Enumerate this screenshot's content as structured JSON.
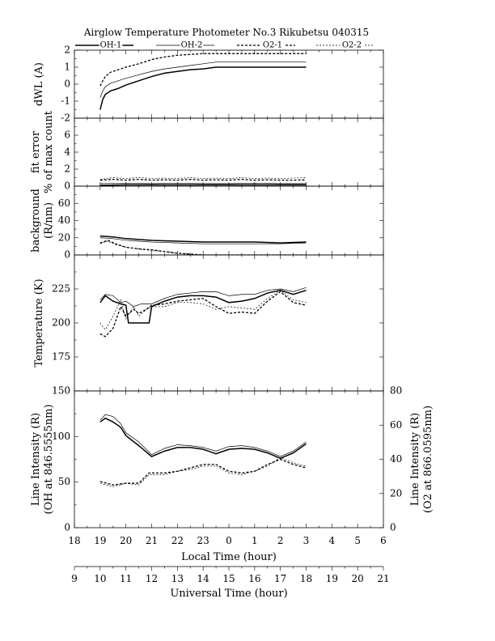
{
  "title": "Airglow Temperature Photometer No.3  Rikubetsu  040315",
  "legend": [
    {
      "label": "OH-1",
      "style": "solid-thick"
    },
    {
      "label": "OH-2",
      "style": "solid-thin"
    },
    {
      "label": "O2-1",
      "style": "dashed-thick"
    },
    {
      "label": "O2-2",
      "style": "dashed-thin"
    }
  ],
  "xaxis": {
    "local_label": "Local Time (hour)",
    "local_ticks": [
      "18",
      "19",
      "20",
      "21",
      "22",
      "23",
      "0",
      "1",
      "2",
      "3",
      "4",
      "5",
      "6"
    ],
    "ut_label": "Universal Time (hour)",
    "ut_ticks": [
      "9",
      "10",
      "11",
      "12",
      "13",
      "14",
      "15",
      "16",
      "17",
      "18",
      "19",
      "20",
      "21"
    ]
  },
  "chart_data": [
    {
      "type": "line",
      "panel": "dwl",
      "ylabel": "dWL (A)",
      "ylim": [
        -2,
        2
      ],
      "yticks": [
        "-2",
        "-1",
        "0",
        "1",
        "2"
      ],
      "series": [
        {
          "name": "OH-1",
          "x": [
            10,
            10.1,
            10.2,
            10.4,
            10.7,
            11,
            11.5,
            12,
            12.5,
            13,
            13.5,
            14,
            14.5,
            15,
            16,
            17,
            18
          ],
          "y": [
            -1.5,
            -0.9,
            -0.6,
            -0.4,
            -0.25,
            -0.05,
            0.2,
            0.45,
            0.65,
            0.75,
            0.85,
            0.9,
            1.0,
            1.0,
            1.0,
            1.0,
            1.0
          ]
        },
        {
          "name": "OH-2",
          "x": [
            10,
            10.1,
            10.2,
            10.4,
            10.7,
            11,
            11.5,
            12,
            12.5,
            13,
            13.5,
            14,
            14.5,
            15,
            16,
            17,
            18
          ],
          "y": [
            -0.8,
            -0.4,
            -0.15,
            0.05,
            0.2,
            0.35,
            0.55,
            0.75,
            0.9,
            1.0,
            1.1,
            1.2,
            1.3,
            1.3,
            1.3,
            1.3,
            1.3
          ]
        },
        {
          "name": "O2-1",
          "x": [
            10,
            10.1,
            10.2,
            10.4,
            10.7,
            11,
            11.5,
            12,
            12.5,
            13,
            13.5,
            14,
            14.5,
            15,
            16,
            17,
            18
          ],
          "y": [
            -0.1,
            0.2,
            0.45,
            0.7,
            0.85,
            1.0,
            1.2,
            1.45,
            1.6,
            1.7,
            1.75,
            1.8,
            1.8,
            1.8,
            1.8,
            1.8,
            1.8
          ]
        },
        {
          "name": "O2-2",
          "x": [
            10,
            10.5,
            11,
            11.5,
            12,
            12.5,
            13,
            14,
            15,
            16,
            17,
            18
          ],
          "y": [
            2,
            2,
            2,
            2,
            2,
            2,
            2,
            2,
            2,
            2,
            2,
            2
          ]
        }
      ]
    },
    {
      "type": "line",
      "panel": "fit_error",
      "ylabel": "fit error",
      "ylabel2": "% of max count",
      "ylim": [
        0,
        8
      ],
      "yticks": [
        "0",
        "2",
        "4",
        "6"
      ],
      "series": [
        {
          "name": "OH-1",
          "x": [
            10,
            11,
            12,
            13,
            14,
            15,
            16,
            17,
            18
          ],
          "y": [
            0.1,
            0.15,
            0.15,
            0.15,
            0.15,
            0.15,
            0.15,
            0.15,
            0.15
          ]
        },
        {
          "name": "OH-2",
          "x": [
            10,
            11,
            12,
            13,
            14,
            15,
            16,
            17,
            18
          ],
          "y": [
            0.3,
            0.35,
            0.3,
            0.35,
            0.3,
            0.3,
            0.35,
            0.3,
            0.3
          ]
        },
        {
          "name": "O2-1",
          "x": [
            10,
            10.5,
            11,
            11.5,
            12,
            12.5,
            13,
            13.5,
            14,
            14.5,
            15,
            15.5,
            16,
            16.5,
            17,
            17.5,
            18
          ],
          "y": [
            0.7,
            0.8,
            0.7,
            0.8,
            0.7,
            0.75,
            0.7,
            0.8,
            0.7,
            0.75,
            0.7,
            0.8,
            0.7,
            0.75,
            0.7,
            0.7,
            0.75
          ]
        },
        {
          "name": "O2-2",
          "x": [
            10,
            10.5,
            11,
            11.5,
            12,
            12.5,
            13,
            13.5,
            14,
            14.5,
            15,
            15.5,
            16,
            16.5,
            17,
            17.5,
            18
          ],
          "y": [
            0.8,
            1.0,
            0.9,
            1.0,
            0.9,
            0.95,
            0.9,
            1.0,
            0.9,
            0.95,
            0.9,
            1.0,
            0.9,
            0.95,
            0.9,
            0.95,
            1.0
          ]
        }
      ]
    },
    {
      "type": "line",
      "panel": "background",
      "ylabel": "background",
      "ylabel2": "(R/nm)",
      "ylim": [
        0,
        80
      ],
      "yticks": [
        "0",
        "20",
        "40",
        "60"
      ],
      "series": [
        {
          "name": "OH-1",
          "x": [
            10,
            10.5,
            11,
            11.5,
            12,
            13,
            14,
            15,
            16,
            17,
            18
          ],
          "y": [
            22,
            21,
            19,
            18,
            17,
            16,
            15,
            15,
            15,
            14,
            15
          ]
        },
        {
          "name": "OH-2",
          "x": [
            10,
            10.5,
            11,
            11.5,
            12,
            13,
            14,
            15,
            16,
            17,
            18
          ],
          "y": [
            20,
            19,
            17,
            16,
            15,
            14,
            13,
            13,
            13,
            13,
            14
          ]
        },
        {
          "name": "O2-1",
          "x": [
            10,
            10.3,
            10.6,
            11,
            11.5,
            12,
            12.5,
            13,
            13.5,
            14,
            15,
            16,
            17,
            18
          ],
          "y": [
            14,
            17,
            13,
            9,
            7,
            6,
            4,
            2,
            1,
            0,
            0,
            0,
            0,
            0
          ]
        },
        {
          "name": "O2-2",
          "x": [
            10,
            10.3,
            10.6,
            11,
            11.5,
            12,
            12.5,
            13,
            13.5,
            14,
            15,
            16,
            17,
            18
          ],
          "y": [
            13,
            16,
            12,
            9,
            7,
            5,
            4,
            2,
            1,
            0,
            0,
            0,
            0,
            0
          ]
        }
      ]
    },
    {
      "type": "line",
      "panel": "temperature",
      "ylabel": "Temperature (K)",
      "ylim": [
        150,
        250
      ],
      "yticks": [
        "175",
        "200",
        "225"
      ],
      "series": [
        {
          "name": "OH-1",
          "x": [
            10,
            10.2,
            10.5,
            10.8,
            11,
            11.1,
            11.5,
            11.6,
            11.9,
            12,
            12.5,
            13,
            13.5,
            14,
            14.5,
            15,
            15.5,
            16,
            16.5,
            17,
            17.5,
            18
          ],
          "y": [
            215,
            220,
            216,
            214,
            213,
            200,
            200,
            200,
            200,
            212,
            216,
            219,
            220,
            220,
            219,
            215,
            216,
            218,
            222,
            224,
            221,
            224
          ]
        },
        {
          "name": "OH-2",
          "x": [
            10,
            10.2,
            10.5,
            10.8,
            11,
            11.3,
            11.6,
            12,
            12.5,
            13,
            13.5,
            14,
            14.5,
            15,
            15.5,
            16,
            16.5,
            17,
            17.5,
            18
          ],
          "y": [
            217,
            221,
            220,
            215,
            216,
            212,
            214,
            214,
            218,
            221,
            222,
            223,
            223,
            220,
            221,
            221,
            224,
            225,
            223,
            226
          ]
        },
        {
          "name": "O2-1",
          "x": [
            10,
            10.2,
            10.5,
            10.8,
            11,
            11.3,
            11.5,
            11.8,
            12,
            12.5,
            13,
            13.5,
            14,
            14.5,
            15,
            15.5,
            16,
            16.5,
            17,
            17.5,
            18
          ],
          "y": [
            192,
            190,
            196,
            212,
            205,
            210,
            207,
            210,
            213,
            214,
            216,
            217,
            218,
            212,
            207,
            208,
            207,
            216,
            223,
            215,
            213
          ]
        },
        {
          "name": "O2-2",
          "x": [
            10,
            10.2,
            10.5,
            10.8,
            11,
            11.3,
            11.5,
            11.8,
            12,
            12.5,
            13,
            13.5,
            14,
            14.5,
            15,
            15.5,
            16,
            16.5,
            17,
            17.5,
            18
          ],
          "y": [
            200,
            195,
            205,
            217,
            203,
            212,
            205,
            210,
            212,
            212,
            215,
            215,
            214,
            210,
            212,
            211,
            210,
            218,
            224,
            217,
            215
          ]
        }
      ]
    },
    {
      "type": "line",
      "panel": "line_intensity",
      "ylabel": "Line Intensity (R)",
      "ylabel2": "(OH at 846.5555nm)",
      "ylim": [
        0,
        150
      ],
      "yticks": [
        "0",
        "50",
        "100",
        "150"
      ],
      "ylabel_right": "Line Intensity (R)",
      "ylabel_right2": "(O2 at 866.0595nm)",
      "ylim_right": [
        0,
        80
      ],
      "yticks_right": [
        "0",
        "20",
        "40",
        "60",
        "80"
      ],
      "series": [
        {
          "name": "OH-1",
          "axis": "left",
          "x": [
            10,
            10.2,
            10.5,
            10.8,
            11,
            11.5,
            12,
            12.5,
            13,
            13.5,
            14,
            14.5,
            15,
            15.5,
            16,
            16.5,
            17,
            17.5,
            18
          ],
          "y": [
            116,
            120,
            116,
            110,
            101,
            90,
            78,
            84,
            88,
            88,
            86,
            81,
            86,
            87,
            86,
            82,
            76,
            82,
            92
          ]
        },
        {
          "name": "OH-2",
          "axis": "left",
          "x": [
            10,
            10.2,
            10.5,
            10.8,
            11,
            11.5,
            12,
            12.5,
            13,
            13.5,
            14,
            14.5,
            15,
            15.5,
            16,
            16.5,
            17,
            17.5,
            18
          ],
          "y": [
            118,
            124,
            122,
            114,
            104,
            94,
            80,
            87,
            91,
            90,
            88,
            84,
            89,
            90,
            88,
            84,
            78,
            84,
            94
          ]
        },
        {
          "name": "O2-1",
          "axis": "right",
          "x": [
            10,
            10.5,
            11,
            11.5,
            11.9,
            12.5,
            13,
            13.5,
            14,
            14.5,
            15,
            15.5,
            16,
            16.5,
            17,
            17.5,
            18
          ],
          "y": [
            27,
            25,
            26,
            26,
            32,
            32,
            33,
            35,
            37,
            37,
            33,
            32,
            33,
            37,
            40,
            37,
            35
          ]
        },
        {
          "name": "O2-2",
          "axis": "right",
          "x": [
            10,
            10.5,
            11,
            11.5,
            11.9,
            12.5,
            13,
            13.5,
            14,
            14.5,
            15,
            15.5,
            16,
            16.5,
            17,
            17.5,
            18
          ],
          "y": [
            26,
            24,
            26,
            25,
            31,
            31,
            33,
            34,
            36,
            36,
            32,
            31,
            33,
            36,
            41,
            38,
            36
          ]
        }
      ]
    }
  ]
}
